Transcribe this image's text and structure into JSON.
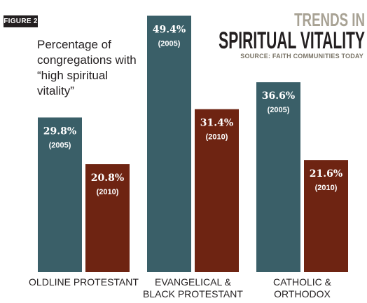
{
  "figure_label": "FIGURE 2",
  "subtitle": "Percentage of congregations with “high spiritual vitality”",
  "title_line1": "TRENDS IN",
  "title_line2": "SPIRITUAL VITALITY",
  "source": "SOURCE: FAITH COMMUNITIES TODAY",
  "colors": {
    "2005": "#3a5f68",
    "2010": "#6e2412",
    "bar_text": "#ffffff"
  },
  "chart_data": {
    "type": "bar",
    "title": "TRENDS IN SPIRITUAL VITALITY",
    "subtitle": "Percentage of congregations with “high spiritual vitality”",
    "categories": [
      "OLDLINE PROTESTANT",
      "EVANGELICAL & BLACK PROTESTANT",
      "CATHOLIC & ORTHODOX"
    ],
    "category_labels": [
      "OLDLINE PROTESTANT",
      "EVANGELICAL &\nBLACK PROTESTANT",
      "CATHOLIC &\nORTHODOX"
    ],
    "series": [
      {
        "name": "2005",
        "values": [
          29.8,
          49.4,
          36.6
        ],
        "value_labels": [
          "29.8%",
          "49.4%",
          "36.6%"
        ],
        "year_labels": [
          "(2005)",
          "(2005)",
          "(2005)"
        ]
      },
      {
        "name": "2010",
        "values": [
          20.8,
          31.4,
          21.6
        ],
        "value_labels": [
          "20.8%",
          "31.4%",
          "21.6%"
        ],
        "year_labels": [
          "(2010)",
          "(2010)",
          "(2010)"
        ]
      }
    ],
    "unit": "%",
    "grid": false,
    "legend": "none"
  }
}
